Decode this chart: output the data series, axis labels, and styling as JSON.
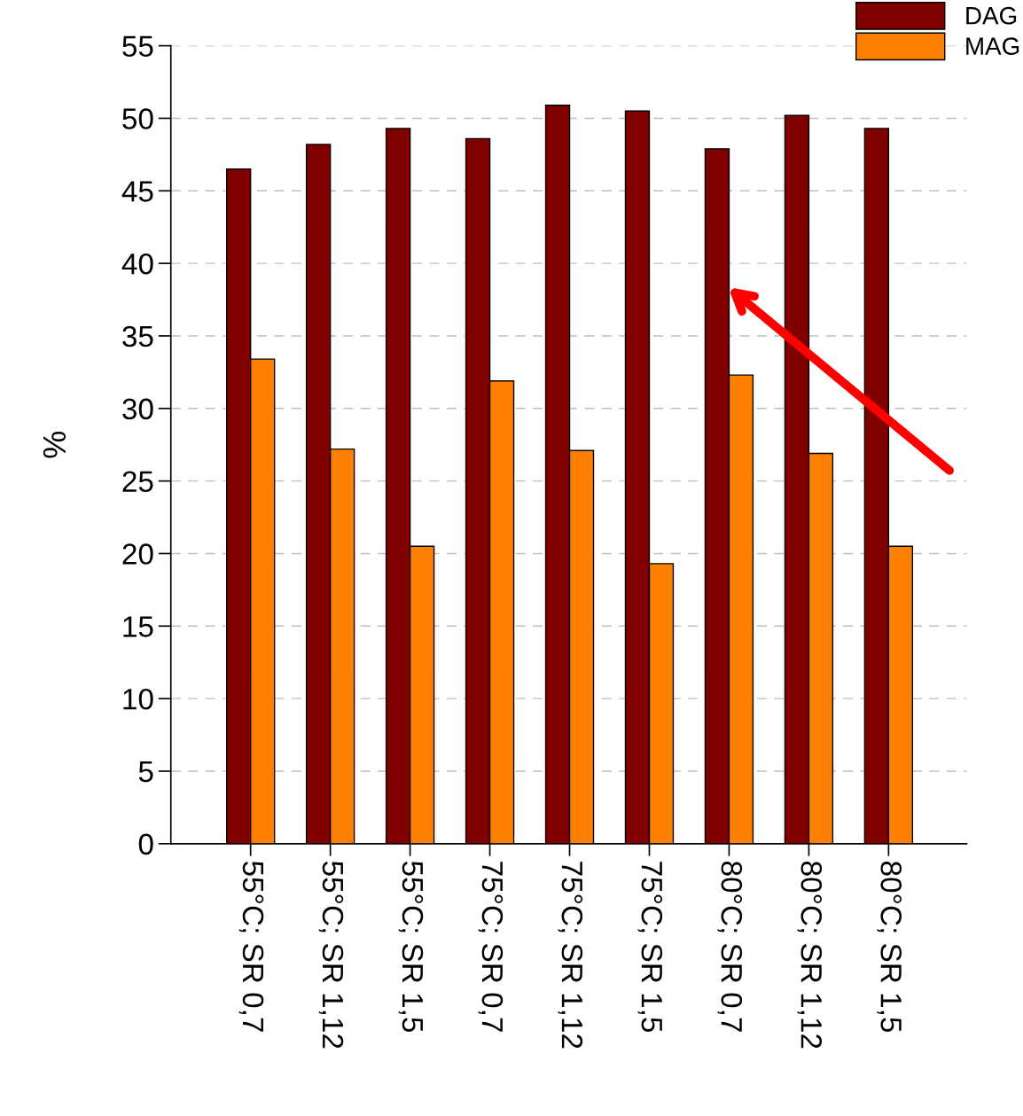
{
  "chart_data": {
    "type": "bar",
    "ylabel": "%",
    "categories": [
      "55°C; SR 0,7",
      "55°C; SR 1,12",
      "55°C; SR 1,5",
      "75°C; SR 0,7",
      "75°C; SR 1,12",
      "75°C; SR 1,5",
      "80°C; SR 0,7",
      "80°C; SR 1,12",
      "80°C; SR 1,5"
    ],
    "series": [
      {
        "name": "DAG",
        "color": "#800000",
        "values": [
          46.5,
          48.2,
          49.3,
          48.6,
          50.9,
          50.5,
          47.9,
          50.2,
          49.3
        ]
      },
      {
        "name": "MAG",
        "color": "#ff8000",
        "values": [
          33.4,
          27.2,
          20.5,
          31.9,
          27.1,
          19.3,
          32.3,
          26.9,
          20.5
        ]
      }
    ],
    "ylim": [
      0,
      55
    ],
    "yticks": [
      0,
      5,
      10,
      15,
      20,
      25,
      30,
      35,
      40,
      45,
      50,
      55
    ],
    "grid": "y",
    "legend": "top right"
  }
}
